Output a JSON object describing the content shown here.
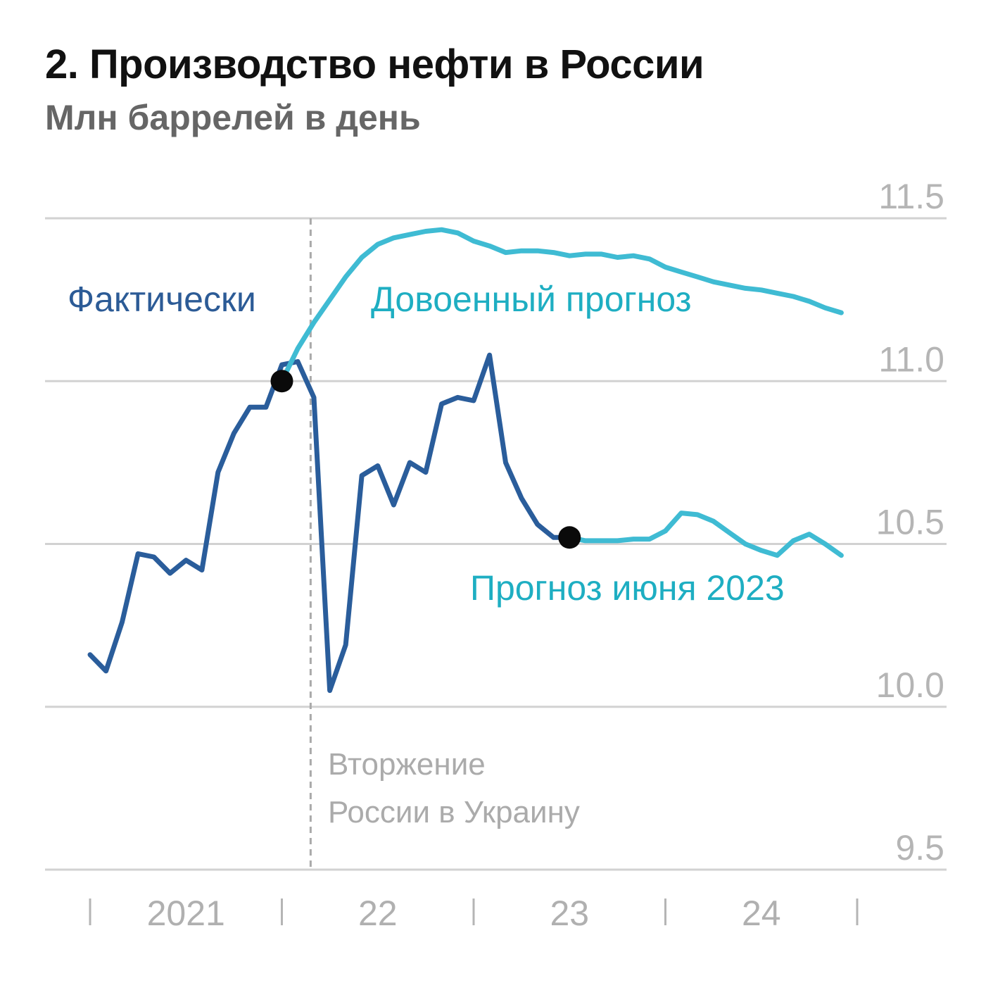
{
  "title": "2. Производство нефти в России",
  "subtitle": "Млн баррелей в день",
  "chart_data": {
    "type": "line",
    "title": "2. Производство нефти в России",
    "ylabel": "Млн баррелей в день",
    "ylim": [
      9.5,
      11.5
    ],
    "yticks": [
      "11.5",
      "11.0",
      "10.5",
      "10.0",
      "9.5"
    ],
    "x_start": 2021.0,
    "x_end": 2025.0,
    "xtick_labels": [
      {
        "label": "2021",
        "x": 2021.5
      },
      {
        "label": "22",
        "x": 2022.5
      },
      {
        "label": "23",
        "x": 2023.5
      },
      {
        "label": "24",
        "x": 2024.5
      }
    ],
    "xtick_marks": [
      2021.0,
      2022.0,
      2023.0,
      2024.0,
      2025.0
    ],
    "series": [
      {
        "name": "Фактически",
        "color": "#2a5d9b",
        "x": [
          2021.0,
          2021.083,
          2021.167,
          2021.25,
          2021.333,
          2021.417,
          2021.5,
          2021.583,
          2021.667,
          2021.75,
          2021.833,
          2021.917,
          2022.0,
          2022.083,
          2022.167,
          2022.25,
          2022.333,
          2022.417,
          2022.5,
          2022.583,
          2022.667,
          2022.75,
          2022.833,
          2022.917,
          2023.0,
          2023.083,
          2023.167,
          2023.25,
          2023.333,
          2023.417,
          2023.5,
          2023.542
        ],
        "y": [
          10.16,
          10.11,
          10.26,
          10.47,
          10.46,
          10.41,
          10.45,
          10.42,
          10.72,
          10.84,
          10.92,
          10.92,
          11.05,
          11.06,
          10.95,
          10.05,
          10.19,
          10.71,
          10.74,
          10.62,
          10.75,
          10.72,
          10.93,
          10.95,
          10.94,
          11.08,
          10.75,
          10.64,
          10.56,
          10.52,
          10.52,
          10.51
        ]
      },
      {
        "name": "Довоенный прогноз",
        "color": "#3fbbd3",
        "x": [
          2022.0,
          2022.083,
          2022.167,
          2022.25,
          2022.333,
          2022.417,
          2022.5,
          2022.583,
          2022.667,
          2022.75,
          2022.833,
          2022.917,
          2023.0,
          2023.083,
          2023.167,
          2023.25,
          2023.333,
          2023.417,
          2023.5,
          2023.583,
          2023.667,
          2023.75,
          2023.833,
          2023.917,
          2024.0,
          2024.083,
          2024.167,
          2024.25,
          2024.333,
          2024.417,
          2024.5,
          2024.583,
          2024.667,
          2024.75,
          2024.833,
          2024.917
        ],
        "y": [
          11.0,
          11.1,
          11.18,
          11.25,
          11.32,
          11.38,
          11.42,
          11.44,
          11.45,
          11.46,
          11.465,
          11.455,
          11.43,
          11.415,
          11.395,
          11.4,
          11.4,
          11.395,
          11.385,
          11.39,
          11.39,
          11.38,
          11.385,
          11.375,
          11.35,
          11.335,
          11.32,
          11.305,
          11.295,
          11.285,
          11.28,
          11.27,
          11.26,
          11.245,
          11.225,
          11.21
        ]
      },
      {
        "name": "Прогноз июня 2023",
        "color": "#3fbbd3",
        "x": [
          2023.5,
          2023.583,
          2023.667,
          2023.75,
          2023.833,
          2023.917,
          2024.0,
          2024.083,
          2024.167,
          2024.25,
          2024.333,
          2024.417,
          2024.5,
          2024.583,
          2024.667,
          2024.75,
          2024.833,
          2024.917
        ],
        "y": [
          10.52,
          10.51,
          10.51,
          10.51,
          10.515,
          10.515,
          10.54,
          10.595,
          10.59,
          10.57,
          10.535,
          10.5,
          10.48,
          10.465,
          10.51,
          10.53,
          10.5,
          10.465
        ]
      }
    ],
    "markers": [
      {
        "x": 2022.0,
        "y": 11.0
      },
      {
        "x": 2023.5,
        "y": 10.52
      }
    ],
    "event_line": {
      "x": 2022.15
    }
  },
  "labels": {
    "actual": "Фактически",
    "prewar": "Довоенный прогноз",
    "june": "Прогноз июня 2023",
    "invasion_line1": "Вторжение",
    "invasion_line2": "России в Украину"
  }
}
